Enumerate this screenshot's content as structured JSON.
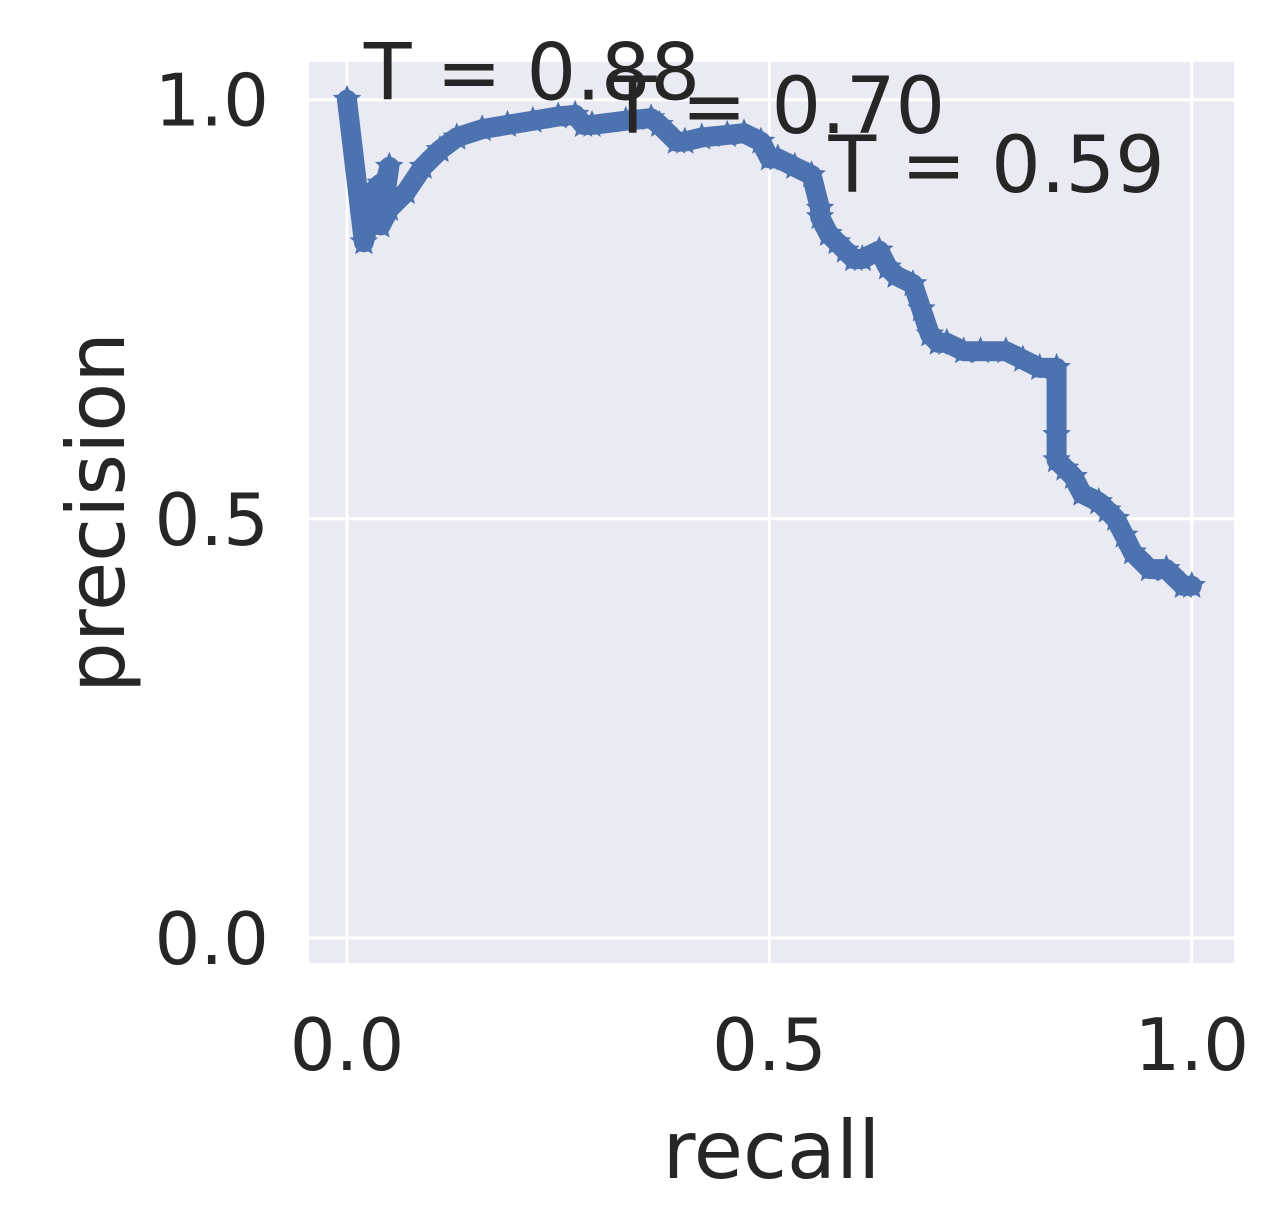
{
  "chart_data": {
    "type": "line",
    "title": "",
    "xlabel": "recall",
    "ylabel": "precision",
    "xlim": [
      -0.045,
      1.05
    ],
    "ylim": [
      -0.03,
      1.045
    ],
    "xticks": [
      {
        "value": 0.0,
        "label": "0.0"
      },
      {
        "value": 0.5,
        "label": "0.5"
      },
      {
        "value": 1.0,
        "label": "1.0"
      }
    ],
    "yticks": [
      {
        "value": 0.0,
        "label": "0.0"
      },
      {
        "value": 0.5,
        "label": "0.5"
      },
      {
        "value": 1.0,
        "label": "1.0"
      }
    ],
    "grid": true,
    "background": "#eaeaf2",
    "line_color": "#4c72b0",
    "marker": "star",
    "series": [
      {
        "x": [
          0.0,
          0.02,
          0.03,
          0.02,
          0.03,
          0.04,
          0.04,
          0.05,
          0.04,
          0.05,
          0.05,
          0.07,
          0.09,
          0.11,
          0.13,
          0.16,
          0.19,
          0.22,
          0.25,
          0.27,
          0.28,
          0.29,
          0.33,
          0.36,
          0.37,
          0.39,
          0.4,
          0.42,
          0.45,
          0.47,
          0.49,
          0.5,
          0.51,
          0.53,
          0.55,
          0.56,
          0.56,
          0.57,
          0.58,
          0.59,
          0.6,
          0.61,
          0.63,
          0.64,
          0.65,
          0.67,
          0.68,
          0.69,
          0.7,
          0.71,
          0.73,
          0.75,
          0.78,
          0.8,
          0.82,
          0.84,
          0.84,
          0.84,
          0.85,
          0.86,
          0.87,
          0.89,
          0.9,
          0.91,
          0.92,
          0.93,
          0.95,
          0.97,
          0.99,
          1.0
        ],
        "y": [
          1.0,
          0.83,
          0.87,
          0.86,
          0.89,
          0.9,
          0.88,
          0.92,
          0.85,
          0.87,
          0.87,
          0.89,
          0.92,
          0.94,
          0.955,
          0.965,
          0.97,
          0.975,
          0.98,
          0.982,
          0.97,
          0.97,
          0.975,
          0.978,
          0.97,
          0.95,
          0.95,
          0.955,
          0.958,
          0.96,
          0.95,
          0.93,
          0.93,
          0.92,
          0.91,
          0.87,
          0.86,
          0.84,
          0.83,
          0.82,
          0.81,
          0.81,
          0.82,
          0.8,
          0.79,
          0.78,
          0.75,
          0.72,
          0.71,
          0.71,
          0.7,
          0.7,
          0.7,
          0.69,
          0.68,
          0.68,
          0.6,
          0.57,
          0.56,
          0.55,
          0.53,
          0.52,
          0.51,
          0.5,
          0.48,
          0.46,
          0.44,
          0.44,
          0.42,
          0.42
        ]
      }
    ],
    "annotations": [
      {
        "text": "T = 0.88",
        "x": 0.02,
        "y": 1.0
      },
      {
        "text": "T = 0.70",
        "x": 0.31,
        "y": 0.96
      },
      {
        "text": "T = 0.59",
        "x": 0.57,
        "y": 0.89
      }
    ]
  }
}
